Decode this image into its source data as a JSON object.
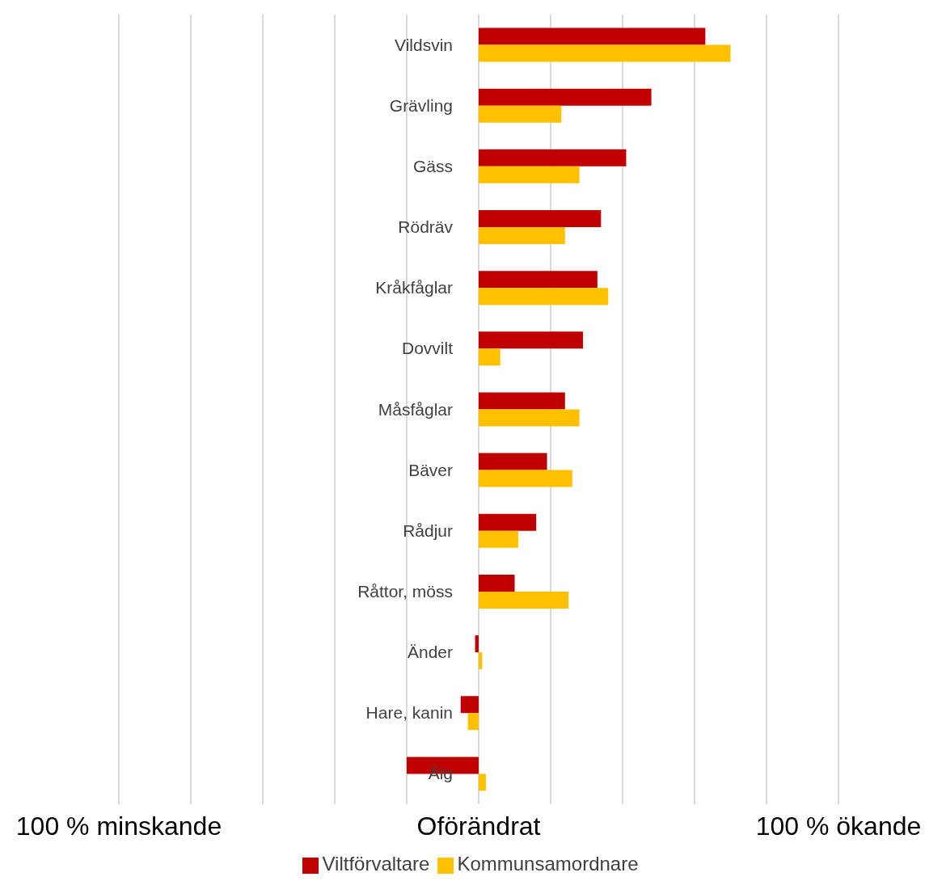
{
  "chart_data": {
    "type": "bar",
    "orientation": "horizontal",
    "categories": [
      "Vildsvin",
      "Grävling",
      "Gäss",
      "Rödräv",
      "Kråkfåglar",
      "Dovvilt",
      "Måsfåglar",
      "Bäver",
      "Rådjur",
      "Råttor, möss",
      "Änder",
      "Hare, kanin",
      "Älg"
    ],
    "series": [
      {
        "name": "Viltförvaltare",
        "color": "#c00000",
        "values": [
          63,
          48,
          41,
          34,
          33,
          29,
          24,
          19,
          16,
          10,
          -1,
          -5,
          -20
        ]
      },
      {
        "name": "Kommunsamordnare",
        "color": "#ffc000",
        "values": [
          70,
          23,
          28,
          24,
          36,
          6,
          28,
          26,
          11,
          25,
          1,
          -3,
          2
        ]
      }
    ],
    "xlim": [
      -100,
      100
    ],
    "xticks": [
      {
        "value": -100,
        "label": "100 % minskande"
      },
      {
        "value": -80,
        "label": null
      },
      {
        "value": -60,
        "label": null
      },
      {
        "value": -40,
        "label": null
      },
      {
        "value": -20,
        "label": null
      },
      {
        "value": 0,
        "label": "Oförändrat"
      },
      {
        "value": 20,
        "label": null
      },
      {
        "value": 40,
        "label": null
      },
      {
        "value": 60,
        "label": null
      },
      {
        "value": 80,
        "label": null
      },
      {
        "value": 100,
        "label": "100 % ökande"
      }
    ],
    "grid": "x",
    "legend": "bottom"
  }
}
